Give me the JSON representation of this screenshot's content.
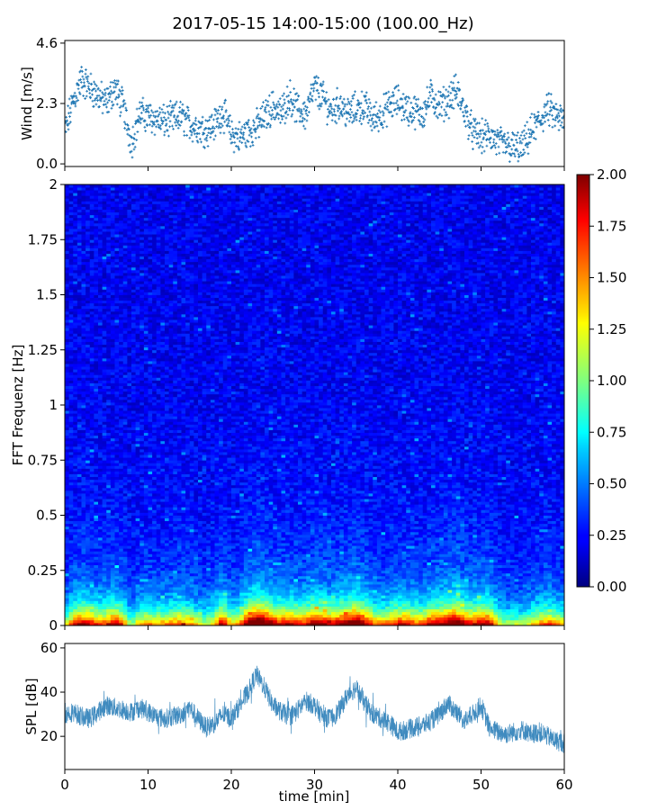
{
  "title": "2017-05-15 14:00-15:00 (100.00_Hz)",
  "x_axis": {
    "label": "time [min]",
    "range": [
      0,
      60
    ],
    "ticks": [
      0,
      10,
      20,
      30,
      40,
      50,
      60
    ],
    "tick_labels": [
      "0",
      "10",
      "20",
      "30",
      "40",
      "50",
      "60"
    ]
  },
  "colormap": "jet",
  "chart_data": [
    {
      "id": "wind",
      "type": "scatter",
      "ylabel": "Wind [m/s]",
      "ylim": [
        -0.1,
        4.7
      ],
      "yticks": [
        0.0,
        2.3,
        4.6
      ],
      "ytick_labels": [
        "0.0",
        "2.3",
        "4.6"
      ],
      "color": "#1f77b4",
      "marker": "plus",
      "series": [
        {
          "x": [
            0,
            1,
            2,
            3,
            4,
            5,
            6,
            7,
            8,
            9,
            10,
            11,
            12,
            13,
            14,
            15,
            16,
            17,
            18,
            19,
            20,
            21,
            22,
            23,
            24,
            25,
            26,
            27,
            28,
            29,
            30,
            31,
            32,
            33,
            34,
            35,
            36,
            37,
            38,
            39,
            40,
            41,
            42,
            43,
            44,
            45,
            46,
            47,
            48,
            49,
            50,
            51,
            52,
            53,
            54,
            55,
            56,
            57,
            58,
            59,
            60
          ],
          "y": [
            1.2,
            2.4,
            3.2,
            2.9,
            2.6,
            2.3,
            2.9,
            2.2,
            0.8,
            1.9,
            1.8,
            1.7,
            1.6,
            1.7,
            1.8,
            1.5,
            1.4,
            1.3,
            1.5,
            2.0,
            1.1,
            1.0,
            1.2,
            1.4,
            1.8,
            2.2,
            1.9,
            2.6,
            2.0,
            1.9,
            2.9,
            2.5,
            2.0,
            2.3,
            1.9,
            2.1,
            2.2,
            1.7,
            1.9,
            2.2,
            2.4,
            2.1,
            2.0,
            1.9,
            2.6,
            2.2,
            2.4,
            2.8,
            2.0,
            1.2,
            1.0,
            1.1,
            0.8,
            0.7,
            0.6,
            0.6,
            1.2,
            1.6,
            2.1,
            1.8,
            1.6
          ]
        }
      ]
    },
    {
      "id": "spectrogram",
      "type": "heatmap",
      "ylabel": "FFT Frequenz [Hz]",
      "ylim": [
        0,
        2
      ],
      "yticks": [
        0,
        0.25,
        0.5,
        0.75,
        1,
        1.25,
        1.5,
        1.75,
        2
      ],
      "ytick_labels": [
        "0",
        "0.25",
        "0.5",
        "0.75",
        "1",
        "1.25",
        "1.5",
        "1.75",
        "2"
      ],
      "x_range": [
        0,
        60
      ],
      "intensity_by_minute": [
        0.5,
        0.8,
        1.0,
        0.9,
        0.8,
        0.8,
        1.0,
        0.8,
        0.4,
        0.7,
        0.7,
        0.7,
        0.7,
        0.75,
        0.8,
        0.7,
        0.6,
        0.5,
        0.7,
        1.0,
        0.6,
        0.7,
        1.1,
        1.3,
        1.2,
        1.0,
        0.9,
        1.0,
        0.9,
        0.9,
        1.1,
        1.0,
        0.9,
        1.0,
        1.1,
        1.2,
        1.0,
        0.8,
        0.7,
        0.8,
        0.9,
        0.9,
        0.8,
        0.8,
        1.0,
        1.0,
        1.1,
        1.2,
        1.0,
        0.9,
        1.0,
        1.0,
        0.6,
        0.5,
        0.5,
        0.5,
        0.6,
        0.7,
        0.8,
        0.7,
        0.6
      ],
      "colorbar": {
        "range": [
          0,
          2
        ],
        "ticks": [
          0.0,
          0.25,
          0.5,
          0.75,
          1.0,
          1.25,
          1.5,
          1.75,
          2.0
        ],
        "tick_labels": [
          "0.00",
          "0.25",
          "0.50",
          "0.75",
          "1.00",
          "1.25",
          "1.50",
          "1.75",
          "2.00"
        ]
      }
    },
    {
      "id": "spl",
      "type": "line",
      "ylabel": "SPL [dB]",
      "ylim": [
        5,
        62
      ],
      "yticks": [
        20,
        40,
        60
      ],
      "ytick_labels": [
        "20",
        "40",
        "60"
      ],
      "color": "#1f77b4",
      "series": [
        {
          "x": [
            0,
            1,
            2,
            3,
            4,
            5,
            6,
            7,
            8,
            9,
            10,
            11,
            12,
            13,
            14,
            15,
            16,
            17,
            18,
            19,
            20,
            21,
            22,
            23,
            24,
            25,
            26,
            27,
            28,
            29,
            30,
            31,
            32,
            33,
            34,
            35,
            36,
            37,
            38,
            39,
            40,
            41,
            42,
            43,
            44,
            45,
            46,
            47,
            48,
            49,
            50,
            51,
            52,
            53,
            54,
            55,
            56,
            57,
            58,
            59,
            60
          ],
          "y": [
            30,
            31,
            29,
            28,
            31,
            34,
            33,
            32,
            31,
            33,
            31,
            29,
            28,
            29,
            30,
            33,
            28,
            24,
            26,
            30,
            28,
            34,
            40,
            48,
            42,
            34,
            31,
            29,
            32,
            36,
            34,
            29,
            28,
            32,
            39,
            42,
            35,
            30,
            28,
            26,
            22,
            23,
            24,
            25,
            27,
            30,
            35,
            31,
            27,
            30,
            34,
            24,
            22,
            21,
            22,
            23,
            21,
            22,
            20,
            18,
            17
          ]
        }
      ]
    }
  ]
}
